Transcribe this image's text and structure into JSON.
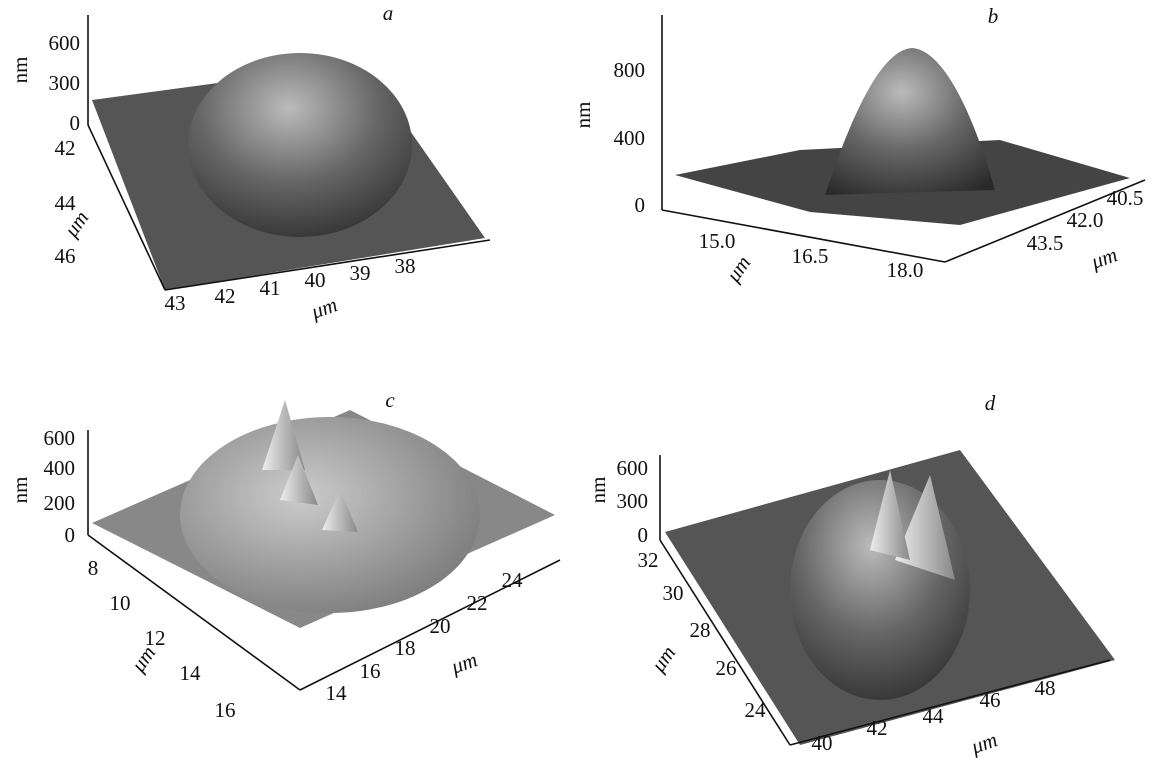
{
  "panels": [
    {
      "label": "a",
      "z_axis": {
        "label": "nm",
        "ticks": [
          "600",
          "300",
          "0"
        ]
      },
      "depth_axis": {
        "label": "μm",
        "ticks": [
          "42",
          "44",
          "46"
        ]
      },
      "front_axis": {
        "label": "μm",
        "ticks": [
          "43",
          "42",
          "41",
          "40",
          "39",
          "38"
        ]
      }
    },
    {
      "label": "b",
      "z_axis": {
        "label": "nm",
        "ticks": [
          "800",
          "400",
          "0"
        ]
      },
      "depth_axis": {
        "label": "μm",
        "ticks": [
          "15.0",
          "16.5",
          "18.0"
        ]
      },
      "front_axis": {
        "label": "μm",
        "ticks": [
          "40.5",
          "42.0",
          "43.5"
        ]
      }
    },
    {
      "label": "c",
      "z_axis": {
        "label": "nm",
        "ticks": [
          "600",
          "400",
          "200",
          "0"
        ]
      },
      "depth_axis": {
        "label": "μm",
        "ticks": [
          "8",
          "10",
          "12",
          "14",
          "16"
        ]
      },
      "front_axis": {
        "label": "μm",
        "ticks": [
          "14",
          "16",
          "18",
          "20",
          "22",
          "24"
        ]
      }
    },
    {
      "label": "d",
      "z_axis": {
        "label": "nm",
        "ticks": [
          "600",
          "300",
          "0"
        ]
      },
      "depth_axis": {
        "label": "μm",
        "ticks": [
          "32",
          "30",
          "28",
          "26",
          "24"
        ]
      },
      "front_axis": {
        "label": "μm",
        "ticks": [
          "40",
          "42",
          "44",
          "46",
          "48"
        ]
      }
    }
  ]
}
